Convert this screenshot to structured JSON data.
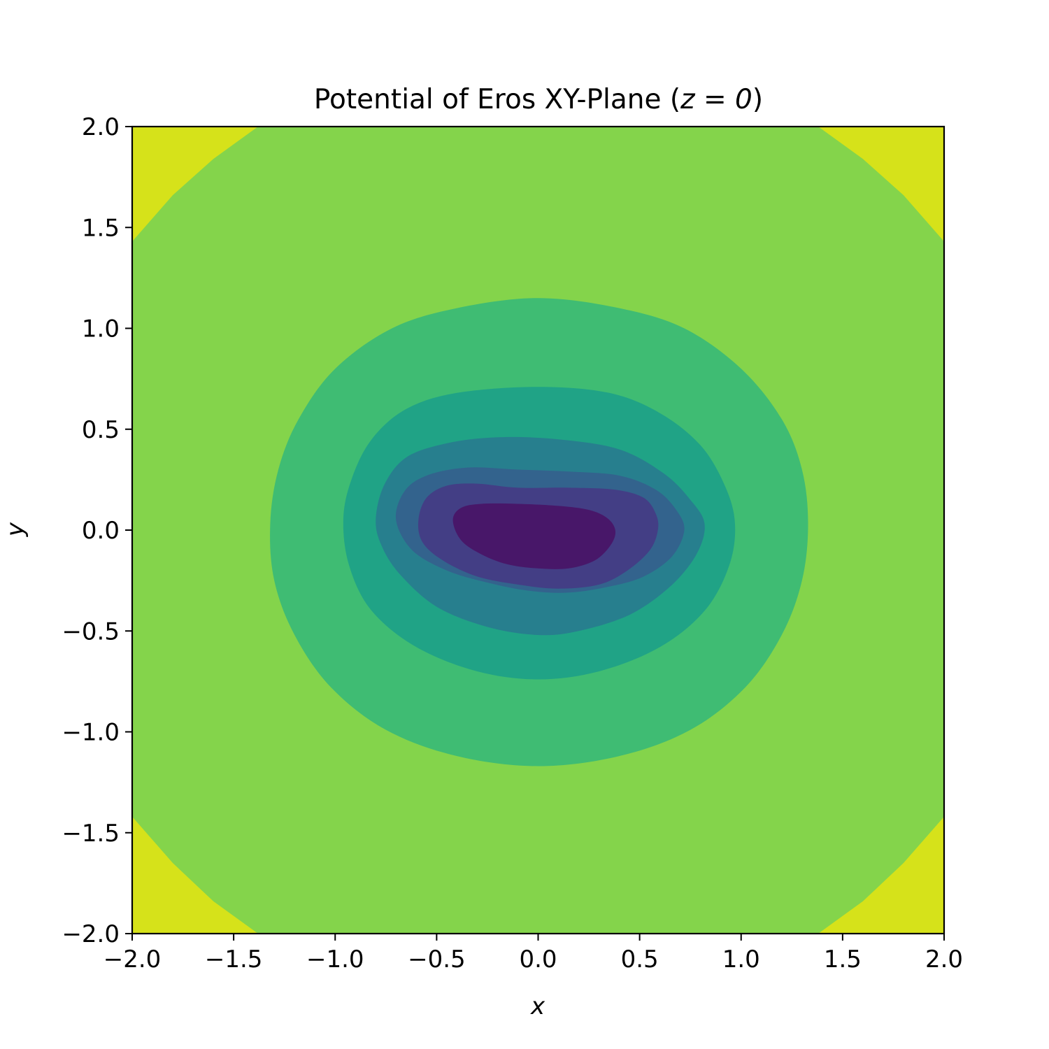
{
  "chart_data": {
    "type": "contour",
    "title": "Potential of Eros XY-Plane (",
    "title_math": "z = 0",
    "title_close": ")",
    "xlabel": "x",
    "ylabel": "y",
    "xlim": [
      -2.0,
      2.0
    ],
    "ylim": [
      -2.0,
      2.0
    ],
    "xticks": [
      -2.0,
      -1.5,
      -1.0,
      -0.5,
      0.0,
      0.5,
      1.0,
      1.5,
      2.0
    ],
    "yticks": [
      -2.0,
      -1.5,
      -1.0,
      -0.5,
      0.0,
      0.5,
      1.0,
      1.5,
      2.0
    ],
    "xtick_labels": [
      "−2.0",
      "−1.5",
      "−1.0",
      "−0.5",
      "0.0",
      "0.5",
      "1.0",
      "1.5",
      "2.0"
    ],
    "ytick_labels": [
      "−2.0",
      "−1.5",
      "−1.0",
      "−0.5",
      "0.0",
      "0.5",
      "1.0",
      "1.5",
      "2.0"
    ],
    "colormap": "viridis",
    "background_color": "#d6e21a",
    "grid": false,
    "legend": false,
    "levels": [
      {
        "color": "#84d44b",
        "contour": [
          [
            -2.0,
            1.43
          ],
          [
            -1.8,
            1.66
          ],
          [
            -1.6,
            1.84
          ],
          [
            -1.38,
            2.0
          ],
          [
            1.38,
            2.0
          ],
          [
            1.6,
            1.84
          ],
          [
            1.8,
            1.66
          ],
          [
            2.0,
            1.43
          ],
          [
            2.0,
            -1.42
          ],
          [
            1.8,
            -1.65
          ],
          [
            1.6,
            -1.84
          ],
          [
            1.38,
            -2.0
          ],
          [
            -1.38,
            -2.0
          ],
          [
            -1.6,
            -1.84
          ],
          [
            -1.8,
            -1.65
          ],
          [
            -2.0,
            -1.42
          ]
        ]
      },
      {
        "color": "#3fbc73",
        "contour": [
          [
            -1.32,
            0.03
          ],
          [
            -1.28,
            0.3
          ],
          [
            -1.18,
            0.55
          ],
          [
            -1.0,
            0.8
          ],
          [
            -0.72,
            1.0
          ],
          [
            -0.4,
            1.1
          ],
          [
            0.0,
            1.15
          ],
          [
            0.4,
            1.1
          ],
          [
            0.72,
            1.0
          ],
          [
            1.0,
            0.8
          ],
          [
            1.2,
            0.55
          ],
          [
            1.3,
            0.3
          ],
          [
            1.33,
            0.03
          ],
          [
            1.3,
            -0.25
          ],
          [
            1.2,
            -0.52
          ],
          [
            1.02,
            -0.78
          ],
          [
            0.75,
            -0.99
          ],
          [
            0.4,
            -1.12
          ],
          [
            0.0,
            -1.17
          ],
          [
            -0.4,
            -1.12
          ],
          [
            -0.75,
            -0.99
          ],
          [
            -1.02,
            -0.78
          ],
          [
            -1.2,
            -0.52
          ],
          [
            -1.3,
            -0.25
          ]
        ]
      },
      {
        "color": "#20a386",
        "contour": [
          [
            -0.96,
            0.05
          ],
          [
            -0.92,
            0.25
          ],
          [
            -0.82,
            0.45
          ],
          [
            -0.65,
            0.6
          ],
          [
            -0.4,
            0.68
          ],
          [
            0.0,
            0.71
          ],
          [
            0.35,
            0.68
          ],
          [
            0.6,
            0.58
          ],
          [
            0.8,
            0.42
          ],
          [
            0.92,
            0.22
          ],
          [
            0.97,
            0.03
          ],
          [
            0.94,
            -0.18
          ],
          [
            0.82,
            -0.4
          ],
          [
            0.6,
            -0.58
          ],
          [
            0.3,
            -0.7
          ],
          [
            0.0,
            -0.74
          ],
          [
            -0.3,
            -0.7
          ],
          [
            -0.6,
            -0.58
          ],
          [
            -0.82,
            -0.4
          ],
          [
            -0.93,
            -0.18
          ]
        ]
      },
      {
        "color": "#277f8e",
        "contour": [
          [
            -0.8,
            0.05
          ],
          [
            -0.76,
            0.22
          ],
          [
            -0.65,
            0.36
          ],
          [
            -0.45,
            0.43
          ],
          [
            -0.2,
            0.46
          ],
          [
            0.1,
            0.45
          ],
          [
            0.4,
            0.4
          ],
          [
            0.62,
            0.28
          ],
          [
            0.75,
            0.15
          ],
          [
            0.82,
            0.03
          ],
          [
            0.78,
            -0.12
          ],
          [
            0.65,
            -0.28
          ],
          [
            0.45,
            -0.42
          ],
          [
            0.2,
            -0.5
          ],
          [
            0.0,
            -0.52
          ],
          [
            -0.25,
            -0.48
          ],
          [
            -0.5,
            -0.38
          ],
          [
            -0.68,
            -0.22
          ],
          [
            -0.77,
            -0.08
          ]
        ]
      },
      {
        "color": "#33638d",
        "contour": [
          [
            -0.7,
            0.05
          ],
          [
            -0.66,
            0.19
          ],
          [
            -0.55,
            0.27
          ],
          [
            -0.35,
            0.31
          ],
          [
            -0.1,
            0.3
          ],
          [
            0.15,
            0.29
          ],
          [
            0.4,
            0.27
          ],
          [
            0.58,
            0.2
          ],
          [
            0.68,
            0.1
          ],
          [
            0.72,
            0.0
          ],
          [
            0.66,
            -0.13
          ],
          [
            0.52,
            -0.23
          ],
          [
            0.35,
            -0.28
          ],
          [
            0.15,
            -0.31
          ],
          [
            -0.05,
            -0.3
          ],
          [
            -0.25,
            -0.26
          ],
          [
            -0.45,
            -0.2
          ],
          [
            -0.62,
            -0.1
          ]
        ]
      },
      {
        "color": "#433e85",
        "contour": [
          [
            -0.59,
            0.05
          ],
          [
            -0.55,
            0.16
          ],
          [
            -0.45,
            0.22
          ],
          [
            -0.3,
            0.23
          ],
          [
            -0.1,
            0.21
          ],
          [
            0.15,
            0.21
          ],
          [
            0.38,
            0.2
          ],
          [
            0.52,
            0.16
          ],
          [
            0.58,
            0.08
          ],
          [
            0.59,
            0.0
          ],
          [
            0.55,
            -0.1
          ],
          [
            0.44,
            -0.2
          ],
          [
            0.3,
            -0.27
          ],
          [
            0.1,
            -0.29
          ],
          [
            -0.1,
            -0.27
          ],
          [
            -0.3,
            -0.23
          ],
          [
            -0.47,
            -0.15
          ],
          [
            -0.57,
            -0.06
          ]
        ]
      },
      {
        "color": "#481769",
        "contour": [
          [
            -0.42,
            0.05
          ],
          [
            -0.38,
            0.11
          ],
          [
            -0.28,
            0.13
          ],
          [
            -0.1,
            0.13
          ],
          [
            0.1,
            0.12
          ],
          [
            0.25,
            0.1
          ],
          [
            0.34,
            0.06
          ],
          [
            0.38,
            0.0
          ],
          [
            0.36,
            -0.07
          ],
          [
            0.28,
            -0.15
          ],
          [
            0.15,
            -0.19
          ],
          [
            0.0,
            -0.19
          ],
          [
            -0.15,
            -0.17
          ],
          [
            -0.28,
            -0.12
          ],
          [
            -0.38,
            -0.05
          ]
        ]
      }
    ]
  }
}
